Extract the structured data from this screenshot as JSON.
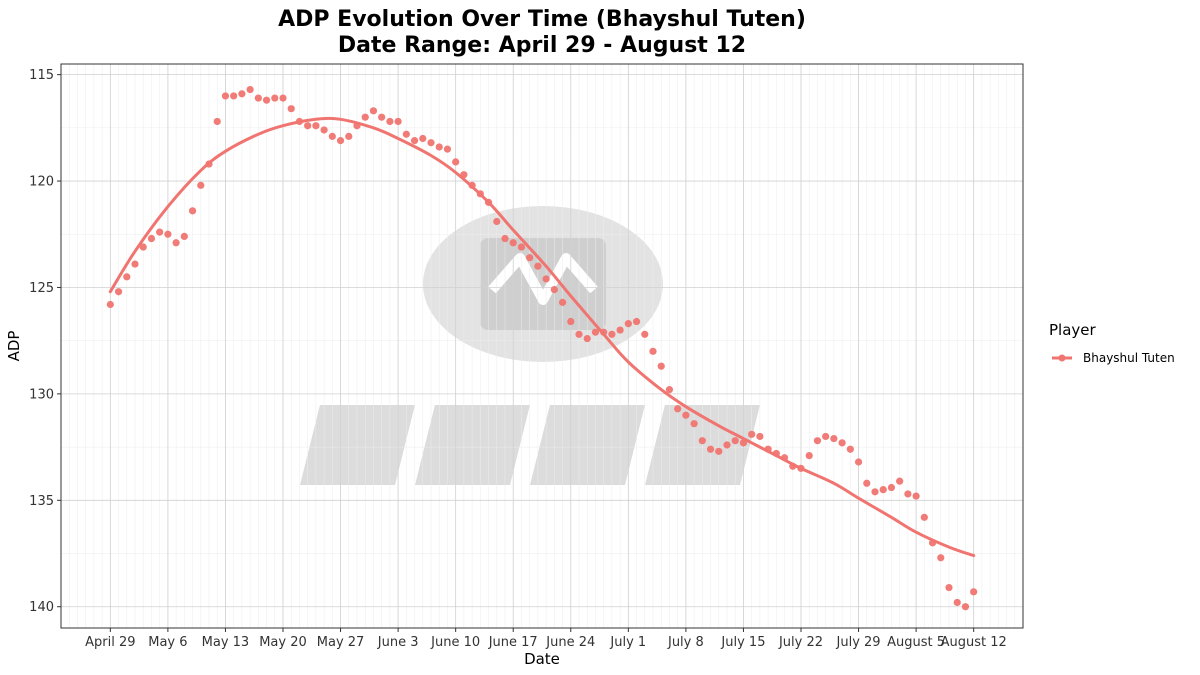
{
  "chart_data": {
    "type": "scatter",
    "title": [
      "ADP Evolution Over Time (Bhayshul Tuten)",
      "Date Range: April 29 - August 12"
    ],
    "xlabel": "Date",
    "ylabel": "ADP",
    "y_reversed": true,
    "ylim": [
      141,
      114.5
    ],
    "xlim": [
      "2025-04-23",
      "2025-08-18"
    ],
    "y_ticks": [
      115,
      120,
      125,
      130,
      135,
      140
    ],
    "x_ticks": [
      {
        "date": "2025-04-29",
        "label": "April 29"
      },
      {
        "date": "2025-05-06",
        "label": "May  6"
      },
      {
        "date": "2025-05-13",
        "label": "May 13"
      },
      {
        "date": "2025-05-20",
        "label": "May 20"
      },
      {
        "date": "2025-05-27",
        "label": "May 27"
      },
      {
        "date": "2025-06-03",
        "label": "June  3"
      },
      {
        "date": "2025-06-10",
        "label": "June 10"
      },
      {
        "date": "2025-06-17",
        "label": "June 17"
      },
      {
        "date": "2025-06-24",
        "label": "June 24"
      },
      {
        "date": "2025-07-01",
        "label": "July  1"
      },
      {
        "date": "2025-07-08",
        "label": "July  8"
      },
      {
        "date": "2025-07-15",
        "label": "July 15"
      },
      {
        "date": "2025-07-22",
        "label": "July 22"
      },
      {
        "date": "2025-07-29",
        "label": "July 29"
      },
      {
        "date": "2025-08-05",
        "label": "August  5"
      },
      {
        "date": "2025-08-12",
        "label": "August 12"
      }
    ],
    "grid": true,
    "legend": {
      "title": "Player",
      "position": "right"
    },
    "series": [
      {
        "name": "Bhayshul Tuten",
        "color": "#F07470",
        "points": [
          [
            "2025-04-29",
            125.8
          ],
          [
            "2025-04-30",
            125.2
          ],
          [
            "2025-05-01",
            124.5
          ],
          [
            "2025-05-02",
            123.9
          ],
          [
            "2025-05-03",
            123.1
          ],
          [
            "2025-05-04",
            122.7
          ],
          [
            "2025-05-05",
            122.4
          ],
          [
            "2025-05-06",
            122.5
          ],
          [
            "2025-05-07",
            122.9
          ],
          [
            "2025-05-08",
            122.6
          ],
          [
            "2025-05-09",
            121.4
          ],
          [
            "2025-05-10",
            120.2
          ],
          [
            "2025-05-11",
            119.2
          ],
          [
            "2025-05-12",
            117.2
          ],
          [
            "2025-05-13",
            116.0
          ],
          [
            "2025-05-14",
            116.0
          ],
          [
            "2025-05-15",
            115.9
          ],
          [
            "2025-05-16",
            115.7
          ],
          [
            "2025-05-17",
            116.1
          ],
          [
            "2025-05-18",
            116.2
          ],
          [
            "2025-05-19",
            116.1
          ],
          [
            "2025-05-20",
            116.1
          ],
          [
            "2025-05-21",
            116.6
          ],
          [
            "2025-05-22",
            117.2
          ],
          [
            "2025-05-23",
            117.4
          ],
          [
            "2025-05-24",
            117.4
          ],
          [
            "2025-05-25",
            117.6
          ],
          [
            "2025-05-26",
            117.9
          ],
          [
            "2025-05-27",
            118.1
          ],
          [
            "2025-05-28",
            117.9
          ],
          [
            "2025-05-29",
            117.4
          ],
          [
            "2025-05-30",
            117.0
          ],
          [
            "2025-05-31",
            116.7
          ],
          [
            "2025-06-01",
            117.0
          ],
          [
            "2025-06-02",
            117.2
          ],
          [
            "2025-06-03",
            117.2
          ],
          [
            "2025-06-04",
            117.8
          ],
          [
            "2025-06-05",
            118.1
          ],
          [
            "2025-06-06",
            118.0
          ],
          [
            "2025-06-07",
            118.2
          ],
          [
            "2025-06-08",
            118.4
          ],
          [
            "2025-06-09",
            118.5
          ],
          [
            "2025-06-10",
            119.1
          ],
          [
            "2025-06-11",
            119.7
          ],
          [
            "2025-06-12",
            120.2
          ],
          [
            "2025-06-13",
            120.6
          ],
          [
            "2025-06-14",
            121.0
          ],
          [
            "2025-06-15",
            121.9
          ],
          [
            "2025-06-16",
            122.7
          ],
          [
            "2025-06-17",
            122.9
          ],
          [
            "2025-06-18",
            123.1
          ],
          [
            "2025-06-19",
            123.6
          ],
          [
            "2025-06-20",
            124.0
          ],
          [
            "2025-06-21",
            124.6
          ],
          [
            "2025-06-22",
            125.1
          ],
          [
            "2025-06-23",
            125.7
          ],
          [
            "2025-06-24",
            126.6
          ],
          [
            "2025-06-25",
            127.2
          ],
          [
            "2025-06-26",
            127.4
          ],
          [
            "2025-06-27",
            127.1
          ],
          [
            "2025-06-28",
            127.1
          ],
          [
            "2025-06-29",
            127.2
          ],
          [
            "2025-06-30",
            127.0
          ],
          [
            "2025-07-01",
            126.7
          ],
          [
            "2025-07-02",
            126.6
          ],
          [
            "2025-07-03",
            127.2
          ],
          [
            "2025-07-04",
            128.0
          ],
          [
            "2025-07-05",
            128.7
          ],
          [
            "2025-07-06",
            129.8
          ],
          [
            "2025-07-07",
            130.7
          ],
          [
            "2025-07-08",
            131.0
          ],
          [
            "2025-07-09",
            131.4
          ],
          [
            "2025-07-10",
            132.2
          ],
          [
            "2025-07-11",
            132.6
          ],
          [
            "2025-07-12",
            132.7
          ],
          [
            "2025-07-13",
            132.4
          ],
          [
            "2025-07-14",
            132.2
          ],
          [
            "2025-07-15",
            132.3
          ],
          [
            "2025-07-16",
            131.9
          ],
          [
            "2025-07-17",
            132.0
          ],
          [
            "2025-07-18",
            132.6
          ],
          [
            "2025-07-19",
            132.8
          ],
          [
            "2025-07-20",
            133.0
          ],
          [
            "2025-07-21",
            133.4
          ],
          [
            "2025-07-22",
            133.5
          ],
          [
            "2025-07-23",
            132.9
          ],
          [
            "2025-07-24",
            132.2
          ],
          [
            "2025-07-25",
            132.0
          ],
          [
            "2025-07-26",
            132.1
          ],
          [
            "2025-07-27",
            132.3
          ],
          [
            "2025-07-28",
            132.6
          ],
          [
            "2025-07-29",
            133.2
          ],
          [
            "2025-07-30",
            134.2
          ],
          [
            "2025-07-31",
            134.6
          ],
          [
            "2025-08-01",
            134.5
          ],
          [
            "2025-08-02",
            134.4
          ],
          [
            "2025-08-03",
            134.1
          ],
          [
            "2025-08-04",
            134.7
          ],
          [
            "2025-08-05",
            134.8
          ],
          [
            "2025-08-06",
            135.8
          ],
          [
            "2025-08-07",
            137.0
          ],
          [
            "2025-08-08",
            137.7
          ],
          [
            "2025-08-09",
            139.1
          ],
          [
            "2025-08-10",
            139.8
          ],
          [
            "2025-08-11",
            140.0
          ],
          [
            "2025-08-12",
            139.3
          ]
        ],
        "trend": [
          [
            "2025-04-29",
            125.2
          ],
          [
            "2025-05-02",
            123.3
          ],
          [
            "2025-05-06",
            121.2
          ],
          [
            "2025-05-10",
            119.5
          ],
          [
            "2025-05-13",
            118.6
          ],
          [
            "2025-05-17",
            117.8
          ],
          [
            "2025-05-20",
            117.4
          ],
          [
            "2025-05-24",
            117.1
          ],
          [
            "2025-05-27",
            117.1
          ],
          [
            "2025-05-31",
            117.5
          ],
          [
            "2025-06-03",
            118.0
          ],
          [
            "2025-06-07",
            118.8
          ],
          [
            "2025-06-10",
            119.6
          ],
          [
            "2025-06-14",
            121.0
          ],
          [
            "2025-06-17",
            122.3
          ],
          [
            "2025-06-21",
            124.0
          ],
          [
            "2025-06-24",
            125.4
          ],
          [
            "2025-06-28",
            127.2
          ],
          [
            "2025-07-01",
            128.5
          ],
          [
            "2025-07-05",
            129.8
          ],
          [
            "2025-07-08",
            130.6
          ],
          [
            "2025-07-12",
            131.5
          ],
          [
            "2025-07-15",
            132.1
          ],
          [
            "2025-07-19",
            132.9
          ],
          [
            "2025-07-22",
            133.5
          ],
          [
            "2025-07-26",
            134.2
          ],
          [
            "2025-07-29",
            134.9
          ],
          [
            "2025-08-02",
            135.8
          ],
          [
            "2025-08-05",
            136.5
          ],
          [
            "2025-08-09",
            137.2
          ],
          [
            "2025-08-12",
            137.6
          ]
        ]
      }
    ]
  }
}
